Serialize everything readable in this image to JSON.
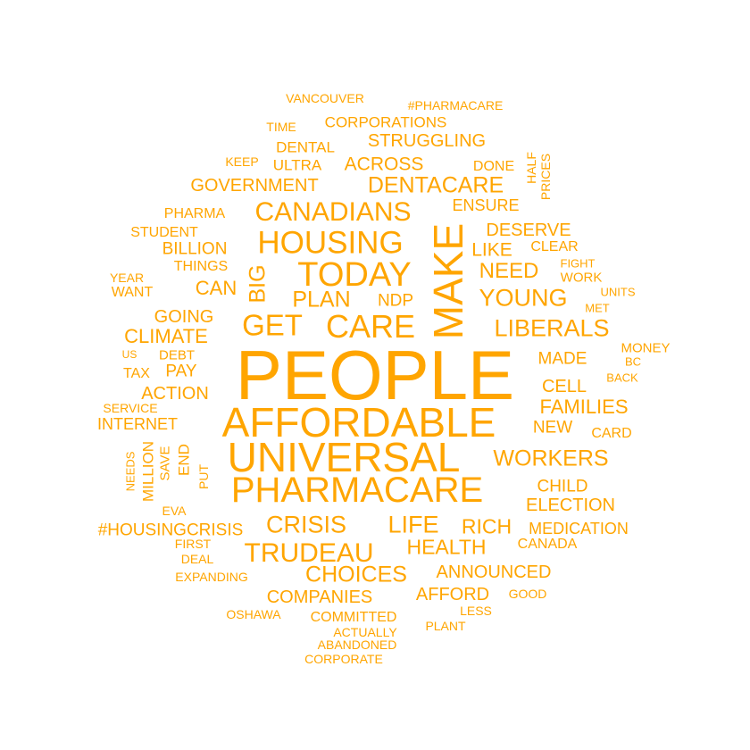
{
  "colors": {
    "word": "#FFA500",
    "background": "#FFFFFF"
  },
  "words": [
    "PEOPLE",
    "AFFORDABLE",
    "UNIVERSAL",
    "PHARMACARE",
    "MAKE",
    "HOUSING",
    "TODAY",
    "CARE",
    "CANADIANS",
    "GET",
    "LIBERALS",
    "CRISIS",
    "LIFE",
    "TRUDEAU",
    "YOUNG",
    "DENTACARE",
    "WORKERS",
    "CHOICES",
    "PLAN",
    "NEED",
    "BIG",
    "HEALTH",
    "RICH",
    "FAMILIES",
    "STRUGGLING",
    "ACROSS",
    "GOVERNMENT",
    "CLIMATE",
    "ACTION",
    "CELL",
    "ANNOUNCED",
    "ELECTION",
    "COMPANIES",
    "AFFORD",
    "DESERVE",
    "CAN",
    "LIKE",
    "ENSURE",
    "GOING",
    "CHILD",
    "NDP",
    "MADE",
    "NEW",
    "#HOUSINGCRISIS",
    "MEDICATION",
    "CORPORATIONS",
    "DENTAL",
    "ULTRA",
    "BILLION",
    "PAY",
    "INTERNET",
    "COMMITTED",
    "CANADA",
    "DONE",
    "CARD",
    "CLEAR",
    "WORK",
    "MONEY",
    "VANCOUVER",
    "#PHARMACARE",
    "PHARMA",
    "STUDENT",
    "THINGS",
    "WANT",
    "YEAR",
    "DEBT",
    "TAX",
    "SERVICE",
    "FIGHT",
    "UNITS",
    "BC",
    "BACK",
    "MET",
    "TIME",
    "KEEP",
    "HALF",
    "PRICES",
    "MILLION",
    "SAVE",
    "END",
    "NEEDS",
    "PUT",
    "EVA",
    "FIRST",
    "DEAL",
    "EXPANDING",
    "OSHAWA",
    "ACTUALLY",
    "ABANDONED",
    "CORPORATE",
    "PLANT",
    "LESS",
    "GOOD",
    "US"
  ]
}
